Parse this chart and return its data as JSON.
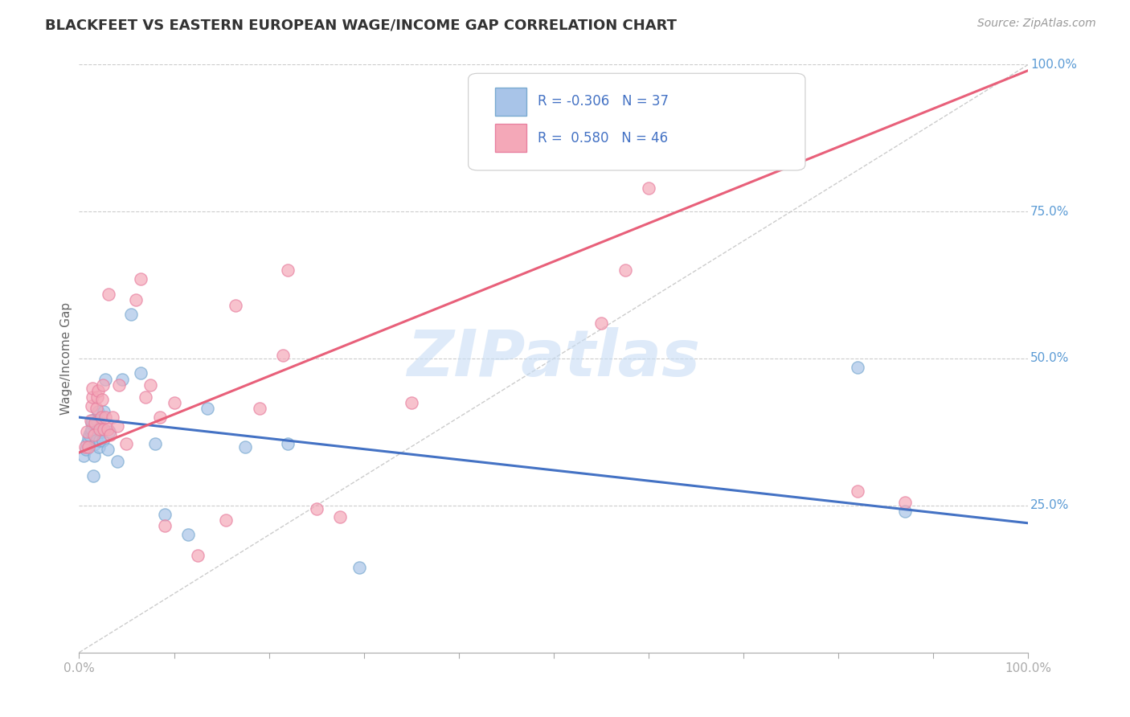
{
  "title": "BLACKFEET VS EASTERN EUROPEAN WAGE/INCOME GAP CORRELATION CHART",
  "source": "Source: ZipAtlas.com",
  "ylabel": "Wage/Income Gap",
  "blackfeet_color": "#a8c4e8",
  "eastern_color": "#f4a8b8",
  "blackfeet_edge_color": "#7aaad0",
  "eastern_edge_color": "#e880a0",
  "blackfeet_line_color": "#4472c4",
  "eastern_line_color": "#e8607a",
  "diagonal_color": "#cccccc",
  "background_color": "#ffffff",
  "grid_color": "#cccccc",
  "legend_text_color": "#4472c4",
  "right_tick_color": "#5b9bd5",
  "watermark_color": "#c8ddf5",
  "blackfeet_points_x": [
    0.005,
    0.007,
    0.008,
    0.01,
    0.011,
    0.012,
    0.013,
    0.013,
    0.014,
    0.015,
    0.016,
    0.017,
    0.018,
    0.019,
    0.02,
    0.021,
    0.022,
    0.023,
    0.024,
    0.025,
    0.026,
    0.028,
    0.03,
    0.032,
    0.04,
    0.045,
    0.055,
    0.065,
    0.08,
    0.09,
    0.115,
    0.135,
    0.175,
    0.22,
    0.295,
    0.82,
    0.87
  ],
  "blackfeet_points_y": [
    0.335,
    0.345,
    0.355,
    0.365,
    0.37,
    0.375,
    0.38,
    0.39,
    0.395,
    0.3,
    0.335,
    0.355,
    0.36,
    0.395,
    0.41,
    0.35,
    0.36,
    0.375,
    0.38,
    0.36,
    0.41,
    0.465,
    0.345,
    0.375,
    0.325,
    0.465,
    0.575,
    0.475,
    0.355,
    0.235,
    0.2,
    0.415,
    0.35,
    0.355,
    0.145,
    0.485,
    0.24
  ],
  "eastern_points_x": [
    0.006,
    0.008,
    0.01,
    0.012,
    0.013,
    0.014,
    0.014,
    0.016,
    0.017,
    0.018,
    0.019,
    0.02,
    0.022,
    0.023,
    0.024,
    0.025,
    0.026,
    0.028,
    0.03,
    0.031,
    0.033,
    0.035,
    0.04,
    0.042,
    0.05,
    0.06,
    0.065,
    0.07,
    0.075,
    0.085,
    0.09,
    0.1,
    0.125,
    0.155,
    0.165,
    0.19,
    0.215,
    0.22,
    0.25,
    0.275,
    0.35,
    0.55,
    0.575,
    0.6,
    0.82,
    0.87
  ],
  "eastern_points_y": [
    0.35,
    0.375,
    0.35,
    0.395,
    0.42,
    0.435,
    0.45,
    0.37,
    0.39,
    0.415,
    0.435,
    0.445,
    0.38,
    0.4,
    0.43,
    0.455,
    0.38,
    0.4,
    0.38,
    0.61,
    0.37,
    0.4,
    0.385,
    0.455,
    0.355,
    0.6,
    0.635,
    0.435,
    0.455,
    0.4,
    0.215,
    0.425,
    0.165,
    0.225,
    0.59,
    0.415,
    0.505,
    0.65,
    0.245,
    0.23,
    0.425,
    0.56,
    0.65,
    0.79,
    0.275,
    0.255
  ],
  "xmin": 0.0,
  "xmax": 1.0,
  "ymin": 0.0,
  "ymax": 1.0,
  "blackfeet_trend_y_start": 0.4,
  "blackfeet_trend_y_end": 0.22,
  "eastern_trend_y_start": 0.34,
  "eastern_trend_y_end": 0.99,
  "legend_r_blackfeet": "R = -0.306",
  "legend_n_blackfeet": "N = 37",
  "legend_r_eastern": "R =  0.580",
  "legend_n_eastern": "N = 46"
}
